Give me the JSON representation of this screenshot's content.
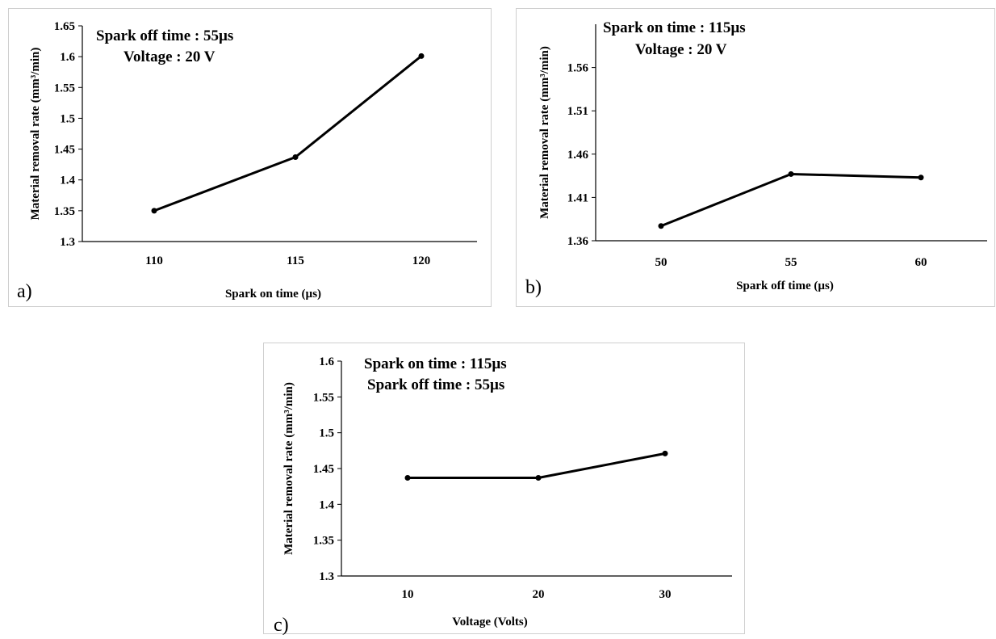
{
  "chart_data": [
    {
      "type": "line",
      "panel_label": "a)",
      "xlabel": "Spark on time (µs)",
      "ylabel": "Material removal rate (mm³/min)",
      "annotations": [
        "Spark off time : 55µs",
        "Voltage : 20 V"
      ],
      "categories": [
        "110",
        "115",
        "120"
      ],
      "series": [
        {
          "values": [
            1.35,
            1.437,
            1.601
          ]
        }
      ],
      "ylim": [
        1.3,
        1.65
      ],
      "yticks": [
        "1.3",
        "1.35",
        "1.4",
        "1.45",
        "1.5",
        "1.55",
        "1.6",
        "1.65"
      ],
      "grid": false,
      "color": "#000000"
    },
    {
      "type": "line",
      "panel_label": "b)",
      "xlabel": "Spark off time (µs)",
      "ylabel": "Material removal rate (mm³/min)",
      "annotations": [
        "Spark on time : 115µs",
        "Voltage : 20 V"
      ],
      "categories": [
        "50",
        "55",
        "60"
      ],
      "series": [
        {
          "values": [
            1.377,
            1.437,
            1.433
          ]
        }
      ],
      "ylim": [
        1.36,
        1.61
      ],
      "yticks": [
        "1.36",
        "1.41",
        "1.46",
        "1.51",
        "1.56"
      ],
      "grid": false,
      "color": "#000000"
    },
    {
      "type": "line",
      "panel_label": "c)",
      "xlabel": "Voltage (Volts)",
      "ylabel": "Material removal rate (mm³/min)",
      "annotations": [
        "Spark on time : 115µs",
        "Spark off time : 55µs"
      ],
      "categories": [
        "10",
        "20",
        "30"
      ],
      "series": [
        {
          "values": [
            1.437,
            1.437,
            1.471
          ]
        }
      ],
      "ylim": [
        1.3,
        1.6
      ],
      "yticks": [
        "1.3",
        "1.35",
        "1.4",
        "1.45",
        "1.5",
        "1.55",
        "1.6"
      ],
      "grid": false,
      "color": "#000000"
    }
  ]
}
